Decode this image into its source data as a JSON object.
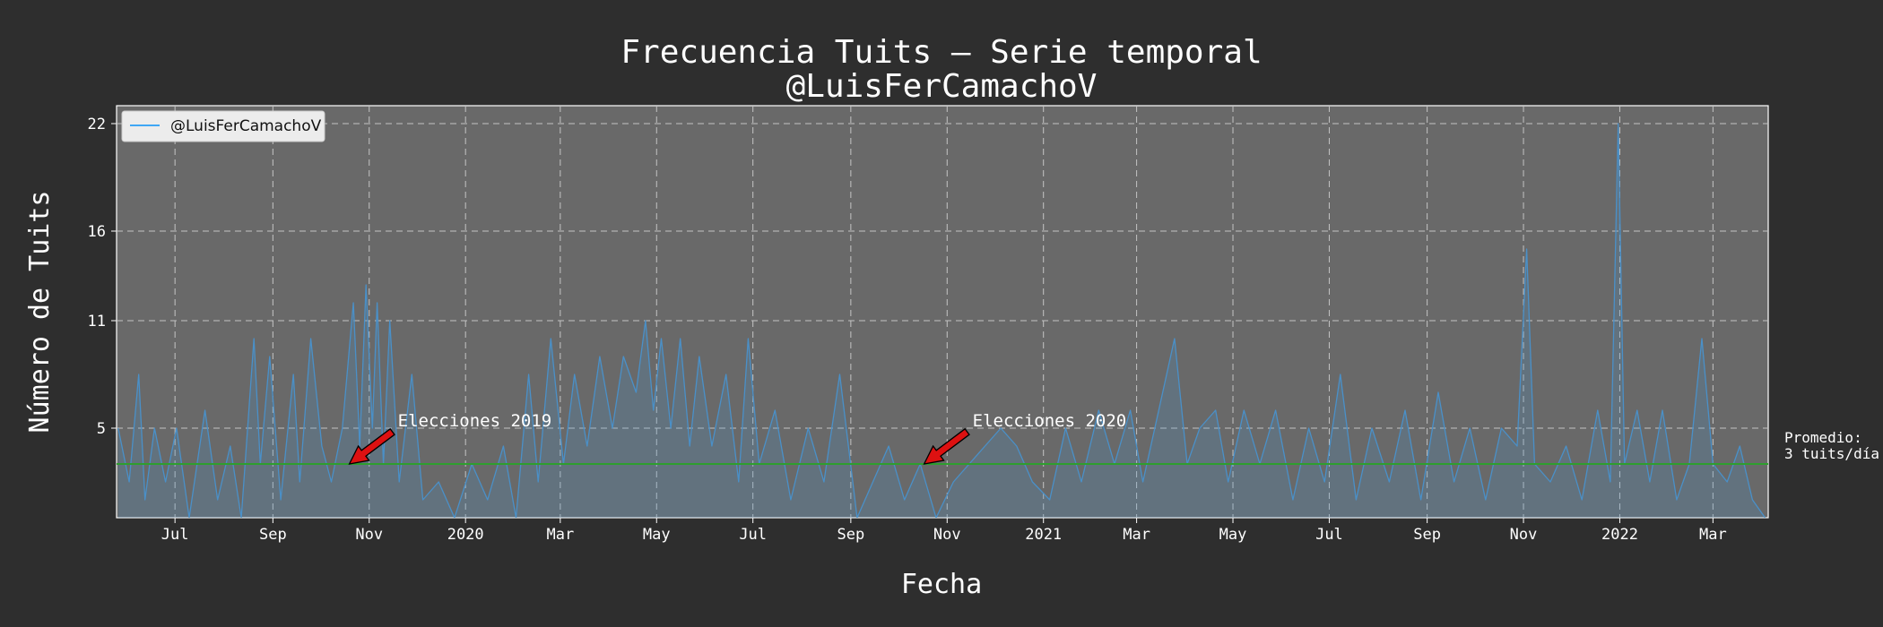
{
  "chart_data": {
    "type": "line",
    "title_line1": "Frecuencia Tuits – Serie temporal",
    "title_line2": "@LuisFerCamachoV",
    "xlabel": "Fecha",
    "ylabel": "Número de Tuits",
    "x_range": [
      "2019-05-25",
      "2022-04-05"
    ],
    "ylim": [
      0,
      23
    ],
    "yticks": [
      5,
      11,
      16,
      22
    ],
    "xticks": [
      {
        "date": "2019-07-01",
        "label": "Jul"
      },
      {
        "date": "2019-09-01",
        "label": "Sep"
      },
      {
        "date": "2019-11-01",
        "label": "Nov"
      },
      {
        "date": "2020-01-01",
        "label": "2020"
      },
      {
        "date": "2020-03-01",
        "label": "Mar"
      },
      {
        "date": "2020-05-01",
        "label": "May"
      },
      {
        "date": "2020-07-01",
        "label": "Jul"
      },
      {
        "date": "2020-09-01",
        "label": "Sep"
      },
      {
        "date": "2020-11-01",
        "label": "Nov"
      },
      {
        "date": "2021-01-01",
        "label": "2021"
      },
      {
        "date": "2021-03-01",
        "label": "Mar"
      },
      {
        "date": "2021-05-01",
        "label": "May"
      },
      {
        "date": "2021-07-01",
        "label": "Jul"
      },
      {
        "date": "2021-09-01",
        "label": "Sep"
      },
      {
        "date": "2021-11-01",
        "label": "Nov"
      },
      {
        "date": "2022-01-01",
        "label": "2022"
      },
      {
        "date": "2022-03-01",
        "label": "Mar"
      }
    ],
    "grid": true,
    "legend_position": "top-left",
    "series": [
      {
        "name": "@LuisFerCamachoV",
        "color": "#4a90c8",
        "legend_color": "#3fa7f5",
        "points": [
          [
            "2019-05-26",
            5
          ],
          [
            "2019-06-02",
            2
          ],
          [
            "2019-06-08",
            8
          ],
          [
            "2019-06-12",
            1
          ],
          [
            "2019-06-18",
            5
          ],
          [
            "2019-06-25",
            2
          ],
          [
            "2019-07-02",
            5
          ],
          [
            "2019-07-10",
            0
          ],
          [
            "2019-07-20",
            6
          ],
          [
            "2019-07-28",
            1
          ],
          [
            "2019-08-05",
            4
          ],
          [
            "2019-08-12",
            0
          ],
          [
            "2019-08-20",
            10
          ],
          [
            "2019-08-24",
            3
          ],
          [
            "2019-08-30",
            9
          ],
          [
            "2019-09-06",
            1
          ],
          [
            "2019-09-14",
            8
          ],
          [
            "2019-09-18",
            2
          ],
          [
            "2019-09-25",
            10
          ],
          [
            "2019-10-02",
            4
          ],
          [
            "2019-10-08",
            2
          ],
          [
            "2019-10-15",
            5
          ],
          [
            "2019-10-22",
            12
          ],
          [
            "2019-10-26",
            4
          ],
          [
            "2019-10-30",
            13
          ],
          [
            "2019-11-03",
            5
          ],
          [
            "2019-11-06",
            12
          ],
          [
            "2019-11-10",
            3
          ],
          [
            "2019-11-14",
            11
          ],
          [
            "2019-11-20",
            2
          ],
          [
            "2019-11-28",
            8
          ],
          [
            "2019-12-05",
            1
          ],
          [
            "2019-12-15",
            2
          ],
          [
            "2019-12-25",
            0
          ],
          [
            "2020-01-05",
            3
          ],
          [
            "2020-01-15",
            1
          ],
          [
            "2020-01-25",
            4
          ],
          [
            "2020-02-02",
            0
          ],
          [
            "2020-02-10",
            8
          ],
          [
            "2020-02-16",
            2
          ],
          [
            "2020-02-24",
            10
          ],
          [
            "2020-03-03",
            3
          ],
          [
            "2020-03-10",
            8
          ],
          [
            "2020-03-18",
            4
          ],
          [
            "2020-03-26",
            9
          ],
          [
            "2020-04-03",
            5
          ],
          [
            "2020-04-10",
            9
          ],
          [
            "2020-04-18",
            7
          ],
          [
            "2020-04-24",
            11
          ],
          [
            "2020-04-29",
            6
          ],
          [
            "2020-05-04",
            10
          ],
          [
            "2020-05-10",
            5
          ],
          [
            "2020-05-16",
            10
          ],
          [
            "2020-05-22",
            4
          ],
          [
            "2020-05-28",
            9
          ],
          [
            "2020-06-05",
            4
          ],
          [
            "2020-06-14",
            8
          ],
          [
            "2020-06-22",
            2
          ],
          [
            "2020-06-28",
            10
          ],
          [
            "2020-07-05",
            3
          ],
          [
            "2020-07-15",
            6
          ],
          [
            "2020-07-25",
            1
          ],
          [
            "2020-08-05",
            5
          ],
          [
            "2020-08-15",
            2
          ],
          [
            "2020-08-25",
            8
          ],
          [
            "2020-09-05",
            0
          ],
          [
            "2020-09-15",
            2
          ],
          [
            "2020-09-25",
            4
          ],
          [
            "2020-10-05",
            1
          ],
          [
            "2020-10-15",
            3
          ],
          [
            "2020-10-25",
            0
          ],
          [
            "2020-11-05",
            2
          ],
          [
            "2020-11-15",
            3
          ],
          [
            "2020-11-25",
            4
          ],
          [
            "2020-12-05",
            5
          ],
          [
            "2020-12-15",
            4
          ],
          [
            "2020-12-25",
            2
          ],
          [
            "2021-01-05",
            1
          ],
          [
            "2021-01-15",
            5
          ],
          [
            "2021-01-25",
            2
          ],
          [
            "2021-02-05",
            6
          ],
          [
            "2021-02-15",
            3
          ],
          [
            "2021-02-25",
            6
          ],
          [
            "2021-03-05",
            2
          ],
          [
            "2021-03-15",
            6
          ],
          [
            "2021-03-25",
            10
          ],
          [
            "2021-04-02",
            3
          ],
          [
            "2021-04-10",
            5
          ],
          [
            "2021-04-20",
            6
          ],
          [
            "2021-04-28",
            2
          ],
          [
            "2021-05-08",
            6
          ],
          [
            "2021-05-18",
            3
          ],
          [
            "2021-05-28",
            6
          ],
          [
            "2021-06-08",
            1
          ],
          [
            "2021-06-18",
            5
          ],
          [
            "2021-06-28",
            2
          ],
          [
            "2021-07-08",
            8
          ],
          [
            "2021-07-18",
            1
          ],
          [
            "2021-07-28",
            5
          ],
          [
            "2021-08-08",
            2
          ],
          [
            "2021-08-18",
            6
          ],
          [
            "2021-08-28",
            1
          ],
          [
            "2021-09-08",
            7
          ],
          [
            "2021-09-18",
            2
          ],
          [
            "2021-09-28",
            5
          ],
          [
            "2021-10-08",
            1
          ],
          [
            "2021-10-18",
            5
          ],
          [
            "2021-10-28",
            4
          ],
          [
            "2021-11-03",
            15
          ],
          [
            "2021-11-08",
            3
          ],
          [
            "2021-11-18",
            2
          ],
          [
            "2021-11-28",
            4
          ],
          [
            "2021-12-08",
            1
          ],
          [
            "2021-12-18",
            6
          ],
          [
            "2021-12-26",
            2
          ],
          [
            "2021-12-31",
            22
          ],
          [
            "2022-01-04",
            3
          ],
          [
            "2022-01-12",
            6
          ],
          [
            "2022-01-20",
            2
          ],
          [
            "2022-01-28",
            6
          ],
          [
            "2022-02-06",
            1
          ],
          [
            "2022-02-14",
            3
          ],
          [
            "2022-02-22",
            10
          ],
          [
            "2022-03-01",
            3
          ],
          [
            "2022-03-10",
            2
          ],
          [
            "2022-03-18",
            4
          ],
          [
            "2022-03-26",
            1
          ],
          [
            "2022-04-03",
            0
          ]
        ]
      }
    ],
    "average": {
      "value": 3,
      "color": "#2e9e2e",
      "label_line1": "Promedio:",
      "label_line2": "3 tuits/día"
    },
    "annotations": [
      {
        "text": "Elecciones 2019",
        "date": "2019-10-20",
        "value": 3,
        "arrow_color": "#dd1111"
      },
      {
        "text": "Elecciones 2020",
        "date": "2020-10-18",
        "value": 3,
        "arrow_color": "#dd1111"
      }
    ]
  }
}
